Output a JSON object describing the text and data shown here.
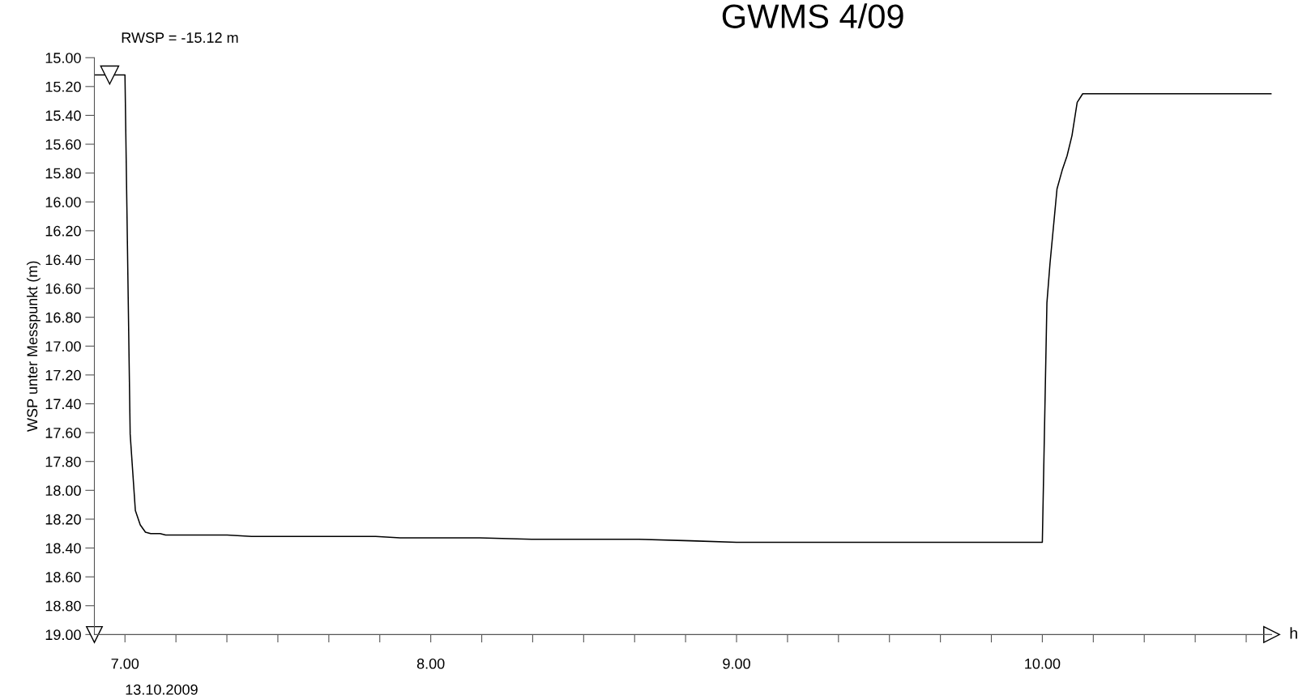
{
  "chart_data": {
    "type": "line",
    "title": "GWMS 4/09",
    "ylabel": "WSP unter Messpunkt (m)",
    "xlabel": "h",
    "annotations": [
      {
        "text": "RWSP = -15.12 m",
        "x": 6.95,
        "y": 15.12
      },
      "13.10.2009"
    ],
    "x": [
      6.9,
      7.0,
      7.017,
      7.034,
      7.05,
      7.067,
      7.084,
      7.115,
      7.133,
      7.334,
      7.414,
      7.82,
      7.9,
      8.16,
      8.33,
      8.68,
      8.85,
      9.0,
      10.0,
      10.015,
      10.025,
      10.048,
      10.065,
      10.081,
      10.097,
      10.114,
      10.132,
      10.749
    ],
    "series": [
      {
        "color": "#000000",
        "values": [
          15.12,
          15.12,
          17.61,
          18.14,
          18.24,
          18.29,
          18.3,
          18.3,
          18.31,
          18.31,
          18.32,
          18.32,
          18.33,
          18.33,
          18.34,
          18.34,
          18.35,
          18.36,
          18.36,
          16.7,
          16.43,
          15.91,
          15.78,
          15.68,
          15.54,
          15.31,
          15.25,
          15.25
        ]
      }
    ],
    "xlim": [
      6.9,
      10.75
    ],
    "ylim": [
      19,
      15
    ],
    "xticks": [
      {
        "value": 7,
        "label": "7.00"
      },
      {
        "value": 7.1667,
        "label": null
      },
      {
        "value": 7.3333,
        "label": null
      },
      {
        "value": 7.5,
        "label": null
      },
      {
        "value": 7.6667,
        "label": null
      },
      {
        "value": 7.8333,
        "label": null
      },
      {
        "value": 8,
        "label": "8.00"
      },
      {
        "value": 8.1667,
        "label": null
      },
      {
        "value": 8.3333,
        "label": null
      },
      {
        "value": 8.5,
        "label": null
      },
      {
        "value": 8.6667,
        "label": null
      },
      {
        "value": 8.8333,
        "label": null
      },
      {
        "value": 9,
        "label": "9.00"
      },
      {
        "value": 9.1667,
        "label": null
      },
      {
        "value": 9.3333,
        "label": null
      },
      {
        "value": 9.5,
        "label": null
      },
      {
        "value": 9.6667,
        "label": null
      },
      {
        "value": 9.8333,
        "label": null
      },
      {
        "value": 10,
        "label": "10.00"
      },
      {
        "value": 10.1667,
        "label": null
      },
      {
        "value": 10.3333,
        "label": null
      },
      {
        "value": 10.5,
        "label": null
      },
      {
        "value": 10.6667,
        "label": null
      }
    ],
    "yticks": [
      {
        "value": 15,
        "label": "15.00"
      },
      {
        "value": 15.2,
        "label": "15.20"
      },
      {
        "value": 15.4,
        "label": "15.40"
      },
      {
        "value": 15.6,
        "label": "15.60"
      },
      {
        "value": 15.8,
        "label": "15.80"
      },
      {
        "value": 16,
        "label": "16.00"
      },
      {
        "value": 16.2,
        "label": "16.20"
      },
      {
        "value": 16.4,
        "label": "16.40"
      },
      {
        "value": 16.6,
        "label": "16.60"
      },
      {
        "value": 16.8,
        "label": "16.80"
      },
      {
        "value": 17,
        "label": "17.00"
      },
      {
        "value": 17.2,
        "label": "17.20"
      },
      {
        "value": 17.4,
        "label": "17.40"
      },
      {
        "value": 17.6,
        "label": "17.60"
      },
      {
        "value": 17.8,
        "label": "17.80"
      },
      {
        "value": 18,
        "label": "18.00"
      },
      {
        "value": 18.2,
        "label": "18.20"
      },
      {
        "value": 18.4,
        "label": "18.40"
      },
      {
        "value": 18.6,
        "label": "18.60"
      },
      {
        "value": 18.8,
        "label": "18.80"
      },
      {
        "value": 19,
        "label": "19.00"
      }
    ],
    "grid": false,
    "legend": false,
    "marker": "none",
    "line_style": "solid"
  }
}
